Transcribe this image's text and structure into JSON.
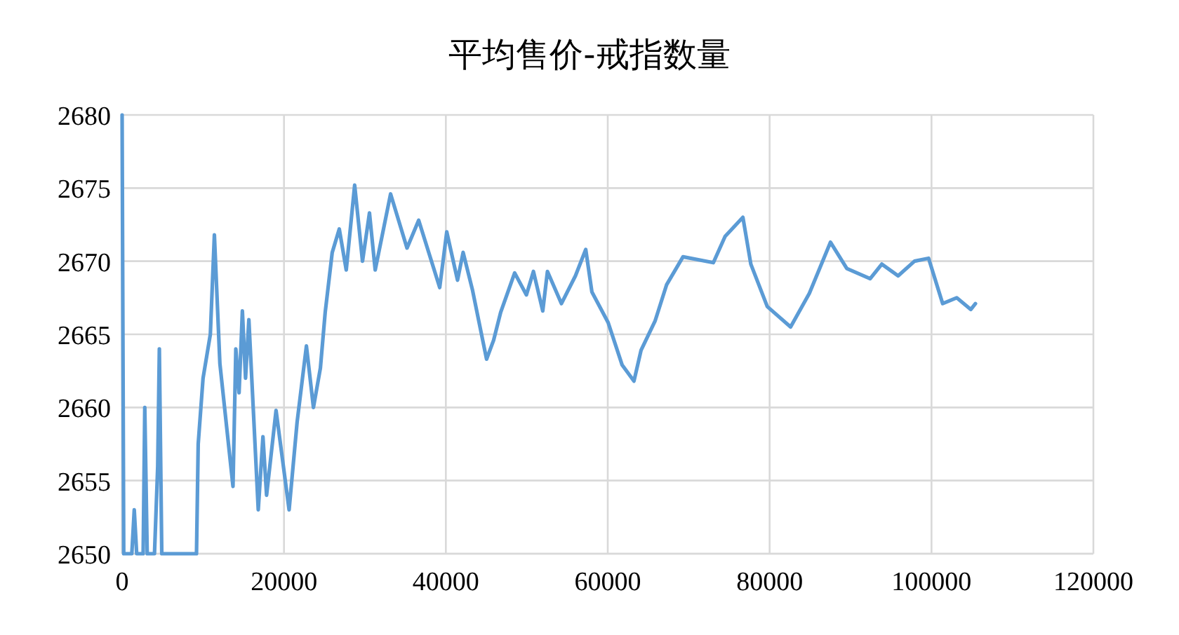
{
  "chart_data": {
    "type": "line",
    "title": "平均售价-戒指数量",
    "xlim": [
      0,
      120000
    ],
    "xticks": [
      0,
      20000,
      40000,
      60000,
      80000,
      100000,
      120000
    ],
    "ylim": [
      2650,
      2680
    ],
    "yticks": [
      2650,
      2655,
      2660,
      2665,
      2670,
      2675,
      2680
    ],
    "grid": true,
    "marker": "none",
    "line_style": "solid",
    "series": [
      {
        "color": "#5b9bd5",
        "x": [
          0,
          200,
          1200,
          1500,
          1800,
          2600,
          2800,
          3100,
          4000,
          4400,
          4600,
          4900,
          5200,
          9190,
          9400,
          10000,
          10900,
          11400,
          12080,
          13700,
          14050,
          14450,
          14860,
          15250,
          15660,
          16820,
          17400,
          17850,
          19020,
          20630,
          21620,
          22770,
          23640,
          24500,
          25090,
          25960,
          26830,
          27690,
          28730,
          29700,
          30560,
          31270,
          33170,
          35200,
          36640,
          39240,
          40110,
          41440,
          42130,
          43300,
          45030,
          45900,
          46770,
          48500,
          49950,
          50820,
          51970,
          52550,
          54280,
          56010,
          57280,
          58040,
          60050,
          61780,
          63240,
          64110,
          65840,
          67280,
          69300,
          73050,
          74500,
          76700,
          77680,
          79710,
          82590,
          84910,
          87520,
          89540,
          92420,
          93860,
          95880,
          97900,
          99640,
          101380,
          103110,
          104850,
          105430
        ],
        "values": [
          2680,
          2650,
          2650,
          2653,
          2650,
          2650,
          2660,
          2650,
          2650,
          2656,
          2664,
          2650,
          2650,
          2650,
          2657.5,
          2662,
          2665,
          2671.8,
          2663,
          2654.6,
          2664,
          2661,
          2666.6,
          2662,
          2666,
          2653,
          2658,
          2654,
          2659.8,
          2653,
          2659,
          2664.2,
          2660,
          2662.7,
          2666.5,
          2670.6,
          2672.2,
          2669.4,
          2675.2,
          2670,
          2673.3,
          2669.4,
          2674.6,
          2670.9,
          2672.8,
          2668.2,
          2672,
          2668.7,
          2670.6,
          2668,
          2663.3,
          2664.6,
          2666.5,
          2669.2,
          2667.7,
          2669.3,
          2666.6,
          2669.3,
          2667.1,
          2669,
          2670.8,
          2667.9,
          2665.8,
          2662.9,
          2661.8,
          2663.9,
          2665.9,
          2668.4,
          2670.3,
          2669.9,
          2671.7,
          2673,
          2669.8,
          2666.9,
          2665.5,
          2667.8,
          2671.3,
          2669.5,
          2668.8,
          2669.8,
          2669,
          2670,
          2670.2,
          2667.1,
          2667.5,
          2666.7,
          2667.1
        ]
      }
    ]
  }
}
